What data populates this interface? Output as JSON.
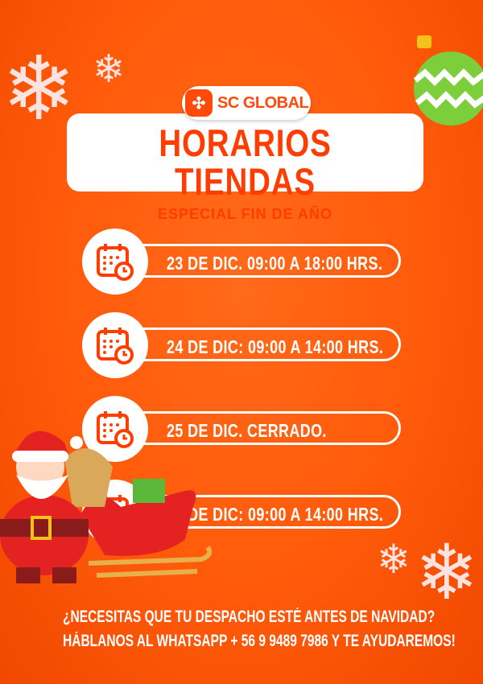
{
  "brand": {
    "name": "SC GLOBAL"
  },
  "header": {
    "title": "HORARIOS TIENDAS",
    "subtitle": "ESPECIAL FIN DE AÑO"
  },
  "schedule": [
    {
      "text": "23 DE DIC. 09:00 A 18:00 HRS.",
      "icon": "calendar-clock-icon"
    },
    {
      "text": "24 DE DIC: 09:00 A 14:00 HRS.",
      "icon": "calendar-clock-icon"
    },
    {
      "text": "25 DE DIC. CERRADO.",
      "icon": "calendar-clock-icon"
    },
    {
      "text": "31 DE DIC: 09:00 A 14:00 HRS.",
      "icon": "calendar-clock-icon"
    }
  ],
  "footer": {
    "line1": "¿NECESITAS QUE TU DESPACHO ESTÉ ANTES DE NAVIDAD?",
    "line2": "HÁBLANOS AL WHATSAPP  + 56 9 9489 7986 Y TE AYUDAREMOS!"
  },
  "colors": {
    "background": "#ff5a0a",
    "accent": "#ff3d00",
    "white": "#ffffff"
  }
}
